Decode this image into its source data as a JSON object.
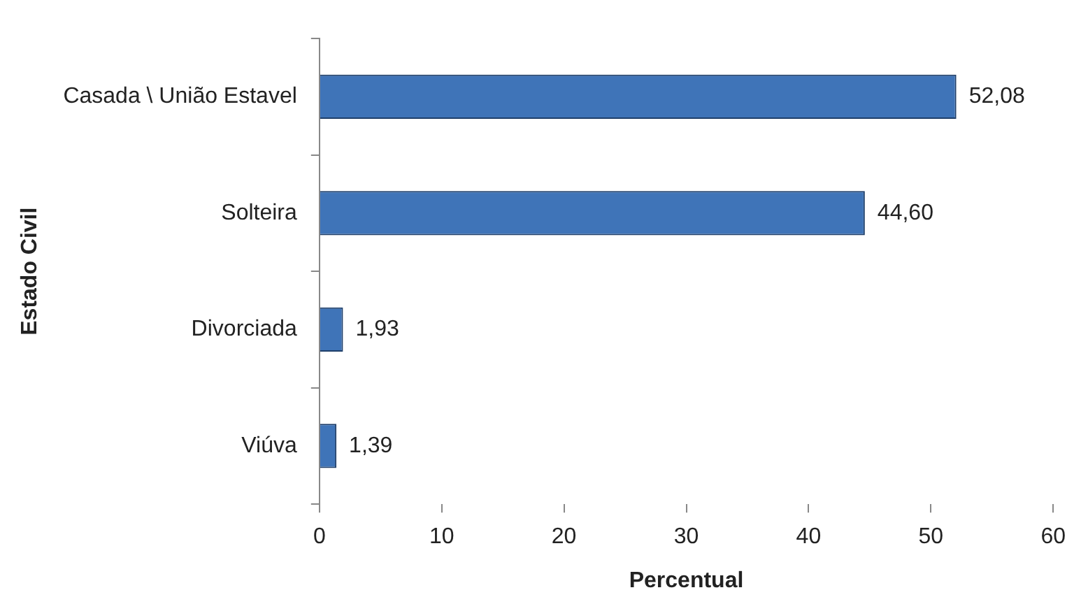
{
  "chart_data": {
    "type": "bar",
    "orientation": "horizontal",
    "xlabel": "Percentual",
    "ylabel": "Estado Civil",
    "categories": [
      "Casada \\ União Estavel",
      "Solteira",
      "Divorciada",
      "Viúva"
    ],
    "values": [
      52.08,
      44.6,
      1.93,
      1.39
    ],
    "value_labels": [
      "52,08",
      "44,60",
      "1,93",
      "1,39"
    ],
    "color": "#3f74b8",
    "xlim": [
      0,
      60
    ],
    "xticks": [
      0,
      10,
      20,
      30,
      40,
      50,
      60
    ],
    "grid": false,
    "legend": false
  }
}
